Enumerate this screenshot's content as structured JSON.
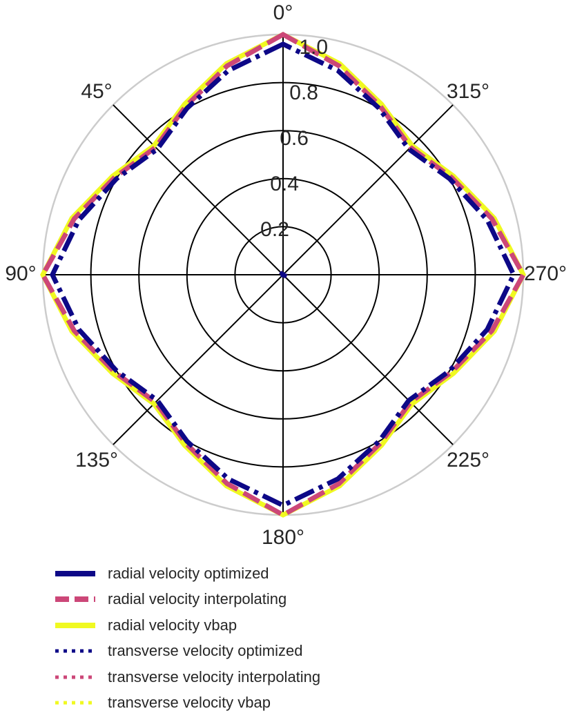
{
  "chart_data": {
    "type": "polar-line",
    "theta_direction": "counterclockwise",
    "theta_zero": "top",
    "theta_ticks": [
      "0°",
      "45°",
      "90°",
      "135°",
      "180°",
      "225°",
      "270°",
      "315°"
    ],
    "r_ticks": [
      "0.2",
      "0.4",
      "0.6",
      "0.8",
      "1.0"
    ],
    "r_lim": [
      0,
      1.0
    ],
    "legend_position": "bottom",
    "series": [
      {
        "name": "radial velocity optimized",
        "color": "#0d0887",
        "style": "solid",
        "angles_deg": [
          0,
          15,
          30,
          45,
          60,
          75,
          90,
          105,
          120,
          135,
          150,
          165,
          180,
          195,
          210,
          225,
          240,
          255,
          270,
          285,
          300,
          315,
          330,
          345
        ],
        "r": [
          0.96,
          0.88,
          0.8,
          0.74,
          0.8,
          0.88,
          0.96,
          0.88,
          0.8,
          0.74,
          0.8,
          0.88,
          0.96,
          0.88,
          0.8,
          0.74,
          0.8,
          0.88,
          0.96,
          0.88,
          0.8,
          0.74,
          0.8,
          0.88
        ]
      },
      {
        "name": "radial velocity interpolating",
        "color": "#cc4778",
        "style": "dashed",
        "angles_deg": [
          0,
          15,
          30,
          45,
          60,
          75,
          90,
          105,
          120,
          135,
          150,
          165,
          180,
          195,
          210,
          225,
          240,
          255,
          270,
          285,
          300,
          315,
          330,
          345
        ],
        "r": [
          1.0,
          0.9,
          0.81,
          0.75,
          0.81,
          0.9,
          1.0,
          0.9,
          0.81,
          0.75,
          0.81,
          0.9,
          1.0,
          0.9,
          0.81,
          0.75,
          0.81,
          0.9,
          1.0,
          0.9,
          0.81,
          0.75,
          0.81,
          0.9
        ]
      },
      {
        "name": "radial velocity vbap",
        "color": "#f0f921",
        "style": "solid",
        "angles_deg": [
          0,
          15,
          30,
          45,
          60,
          75,
          90,
          105,
          120,
          135,
          150,
          165,
          180,
          195,
          210,
          225,
          240,
          255,
          270,
          285,
          300,
          315,
          330,
          345
        ],
        "r": [
          1.0,
          0.91,
          0.82,
          0.76,
          0.82,
          0.91,
          1.0,
          0.91,
          0.82,
          0.76,
          0.82,
          0.91,
          1.0,
          0.91,
          0.82,
          0.76,
          0.82,
          0.91,
          1.0,
          0.91,
          0.82,
          0.76,
          0.82,
          0.91
        ]
      },
      {
        "name": "transverse velocity optimized",
        "color": "#0d0887",
        "style": "dotted",
        "angles_deg": [
          0,
          45,
          90,
          135,
          180,
          225,
          270,
          315
        ],
        "r": [
          0.01,
          0.01,
          0.01,
          0.01,
          0.01,
          0.01,
          0.01,
          0.01
        ]
      },
      {
        "name": "transverse velocity interpolating",
        "color": "#cc4778",
        "style": "dotted",
        "angles_deg": [
          0,
          45,
          90,
          135,
          180,
          225,
          270,
          315
        ],
        "r": [
          0.01,
          0.01,
          0.01,
          0.01,
          0.01,
          0.01,
          0.01,
          0.01
        ]
      },
      {
        "name": "transverse velocity vbap",
        "color": "#f0f921",
        "style": "dotted",
        "angles_deg": [
          0,
          45,
          90,
          135,
          180,
          225,
          270,
          315
        ],
        "r": [
          0.01,
          0.01,
          0.01,
          0.01,
          0.01,
          0.01,
          0.01,
          0.01
        ]
      }
    ]
  }
}
